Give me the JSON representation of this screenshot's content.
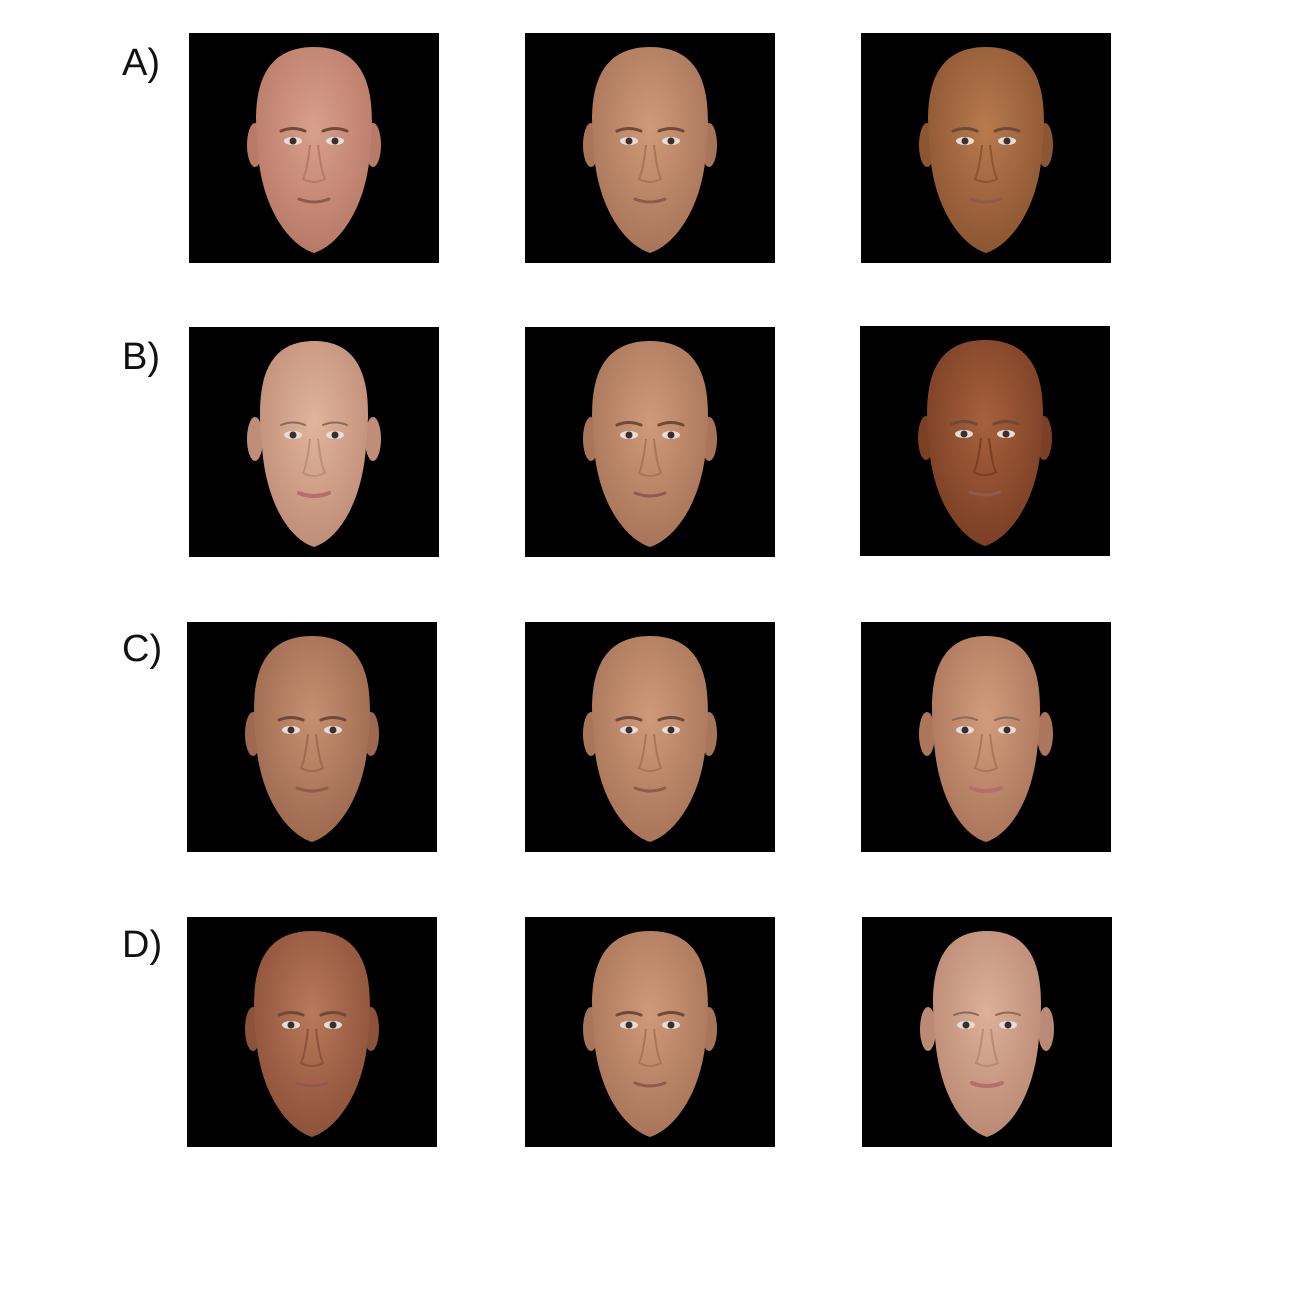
{
  "figure": {
    "rows": [
      {
        "label": "A)",
        "faces": [
          {
            "skin": "#d9a08c",
            "shade": "#b87a68",
            "sex": "male"
          },
          {
            "skin": "#cf9a78",
            "shade": "#a9755a",
            "sex": "male"
          },
          {
            "skin": "#b97a4e",
            "shade": "#8c5632",
            "sex": "male"
          }
        ]
      },
      {
        "label": "B)",
        "faces": [
          {
            "skin": "#e1b49c",
            "shade": "#c08e78",
            "sex": "female"
          },
          {
            "skin": "#cf9a78",
            "shade": "#a9755a",
            "sex": "male"
          },
          {
            "skin": "#a7603e",
            "shade": "#7a3f24",
            "sex": "male"
          }
        ]
      },
      {
        "label": "C)",
        "faces": [
          {
            "skin": "#c68f70",
            "shade": "#9d6a50",
            "sex": "male"
          },
          {
            "skin": "#cf9a78",
            "shade": "#a9755a",
            "sex": "male"
          },
          {
            "skin": "#d29c7c",
            "shade": "#ab765c",
            "sex": "female"
          }
        ]
      },
      {
        "label": "D)",
        "faces": [
          {
            "skin": "#b9785a",
            "shade": "#8d523a",
            "sex": "male"
          },
          {
            "skin": "#cf9a78",
            "shade": "#a9755a",
            "sex": "male"
          },
          {
            "skin": "#ddb098",
            "shade": "#bb8a74",
            "sex": "female"
          }
        ]
      }
    ]
  }
}
